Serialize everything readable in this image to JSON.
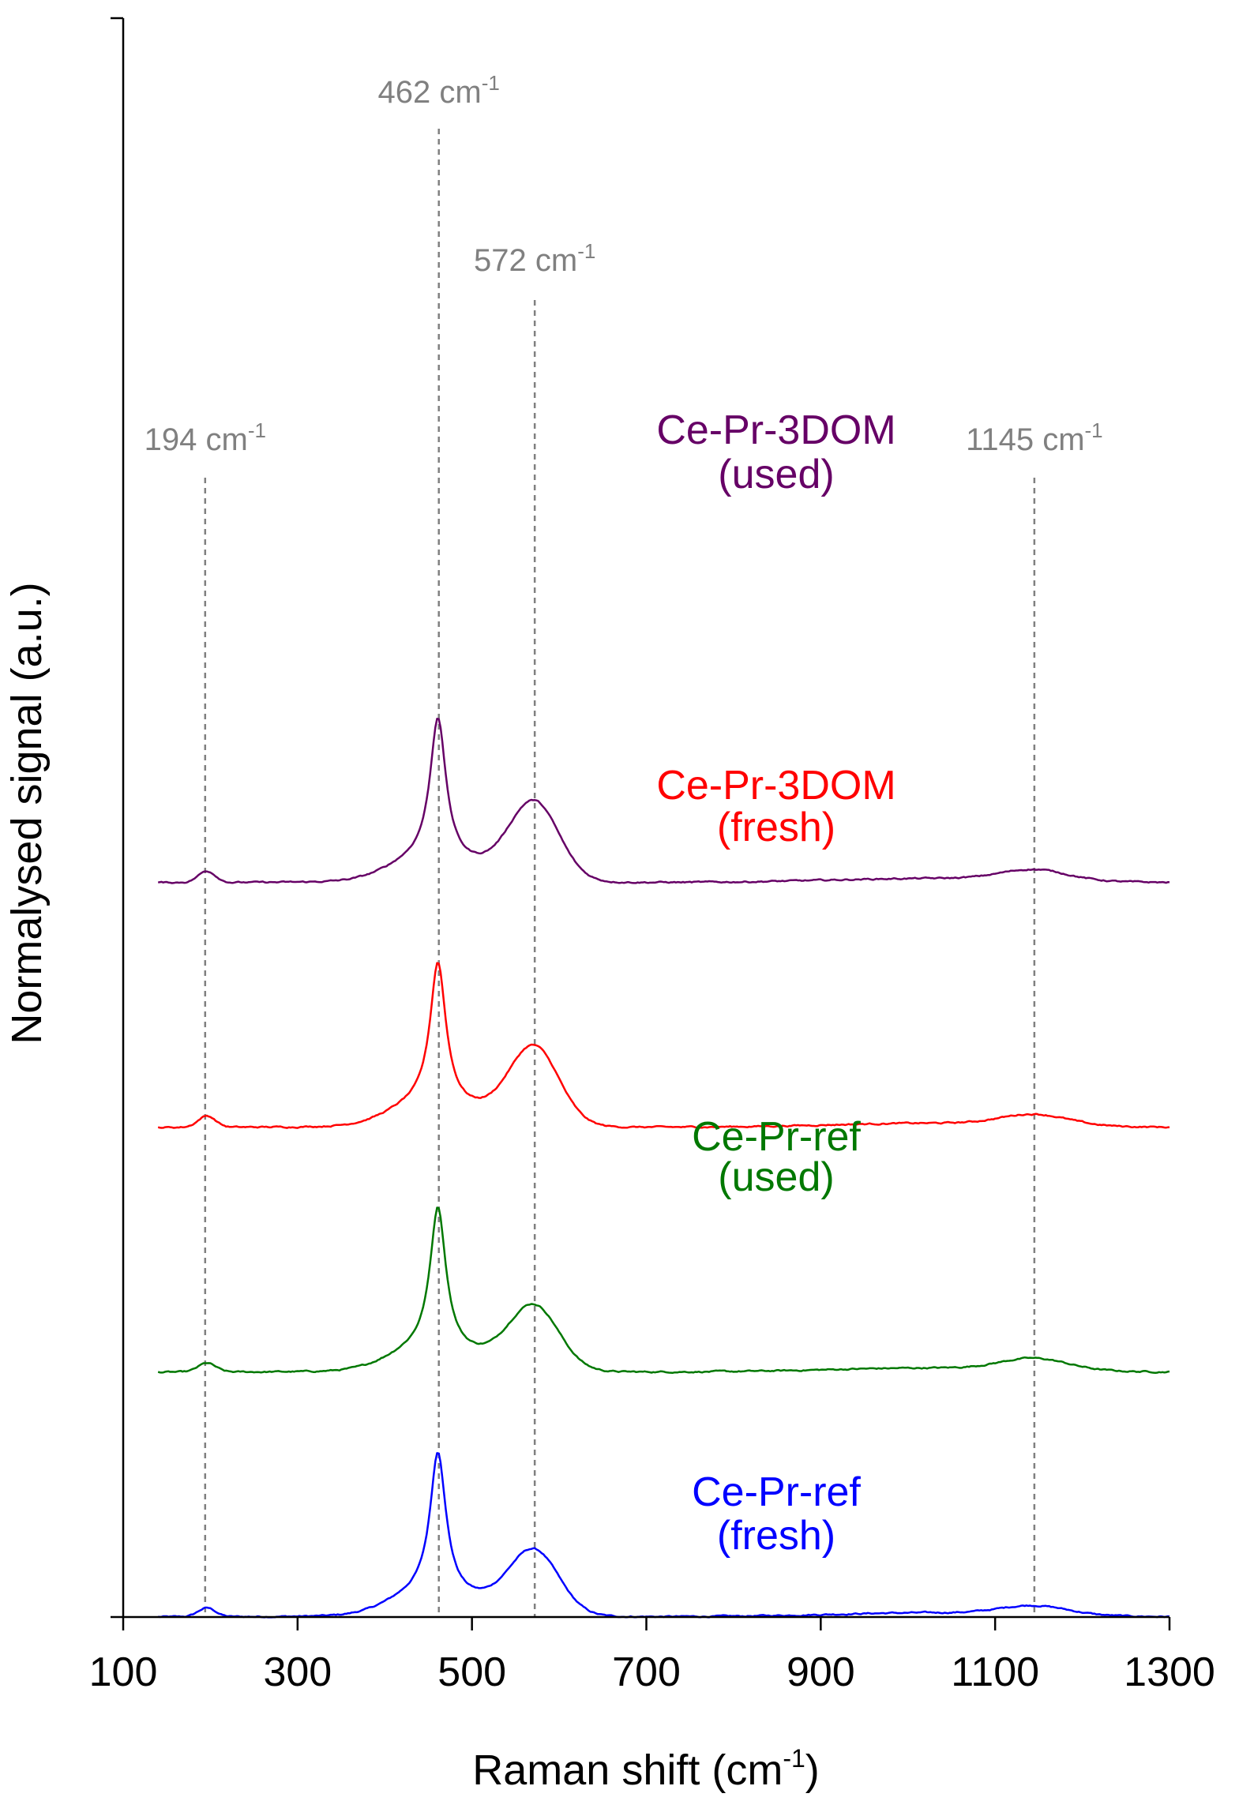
{
  "chart_data": {
    "type": "line",
    "title": "",
    "xlabel_main": "Raman shift (cm",
    "xlabel_sup": "-1",
    "xlabel_tail": ")",
    "ylabel": "Normalysed signal (a.u.)",
    "xlim": [
      100,
      1300
    ],
    "xticks": [
      {
        "value": 100,
        "label": "100"
      },
      {
        "value": 300,
        "label": "300"
      },
      {
        "value": 500,
        "label": "500"
      },
      {
        "value": 700,
        "label": "700"
      },
      {
        "value": 900,
        "label": "900"
      },
      {
        "value": 1100,
        "label": "1100"
      },
      {
        "value": 1300,
        "label": "1300"
      }
    ],
    "y_units": "normalised intensity, offset stacked (a.u.)",
    "reference_lines": [
      {
        "x": 194,
        "label": "194 cm",
        "sup": "-1"
      },
      {
        "x": 462,
        "label": "462 cm",
        "sup": "-1"
      },
      {
        "x": 572,
        "label": "572 cm",
        "sup": "-1"
      },
      {
        "x": 1145,
        "label": "1145 cm",
        "sup": "-1"
      }
    ],
    "series": [
      {
        "name_line1": "Ce-Pr-ref",
        "name_line2": "(fresh)",
        "color": "#0000ff",
        "offset": 0,
        "peak_heights": {
          "194": 0.025,
          "462": 0.4,
          "572": 0.165,
          "1145": 0.025
        },
        "background": 0.0
      },
      {
        "name_line1": "Ce-Pr-ref",
        "name_line2": "(used)",
        "color": "#007800",
        "offset": 1.0,
        "peak_heights": {
          "194": 0.025,
          "462": 0.4,
          "572": 0.165,
          "1145": 0.032
        },
        "background": 0.0
      },
      {
        "name_line1": "Ce-Pr-3DOM",
        "name_line2": "(fresh)",
        "color": "#ff0000",
        "offset": 2.0,
        "peak_heights": {
          "194": 0.032,
          "462": 0.4,
          "572": 0.205,
          "1145": 0.03
        },
        "background": 0.0
      },
      {
        "name_line1": "Ce-Pr-3DOM",
        "name_line2": "(used)",
        "color": "#660066",
        "offset": 3.0,
        "peak_heights": {
          "194": 0.032,
          "462": 0.4,
          "572": 0.205,
          "1145": 0.03
        },
        "background": 0.0
      }
    ],
    "annotation_color": "#808080"
  }
}
